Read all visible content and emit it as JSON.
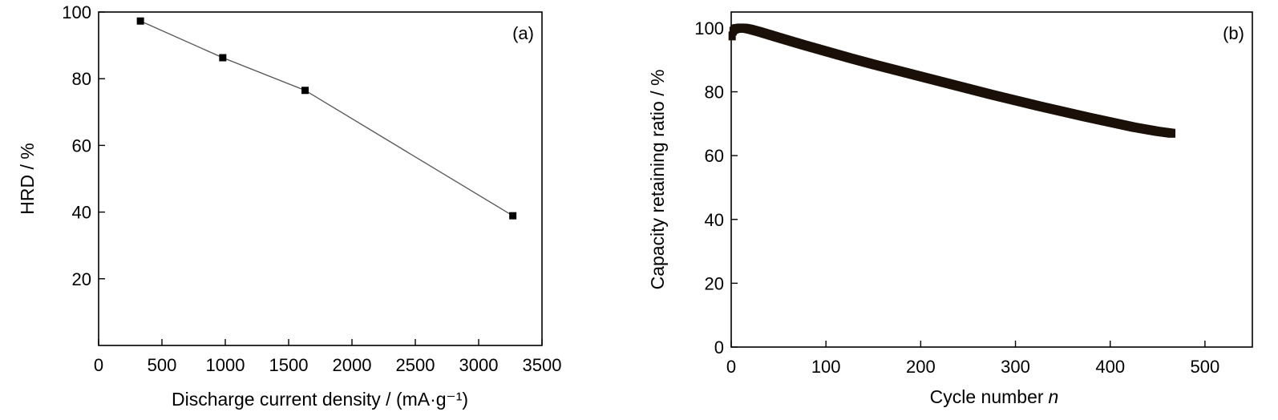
{
  "chart_data": [
    {
      "panel": "(a)",
      "type": "line",
      "xlabel": "Discharge current density / (mA·g⁻¹)",
      "ylabel": "HRD / %",
      "xlim": [
        0,
        3500
      ],
      "ylim": [
        0,
        100
      ],
      "xticks": [
        0,
        500,
        1000,
        1500,
        2000,
        2500,
        3000,
        3500
      ],
      "yticks": [
        20,
        40,
        60,
        80,
        100
      ],
      "series": [
        {
          "x": [
            330,
            980,
            1630,
            3270
          ],
          "y": [
            97.3,
            86.3,
            76.5,
            38.9
          ],
          "marker": "square",
          "color": "#000000",
          "line_color": "#555555"
        }
      ]
    },
    {
      "panel": "(b)",
      "type": "scatter",
      "xlabel": "Cycle number",
      "xlabel_italic": "n",
      "ylabel": "Capacity retaining ratio / %",
      "xlim": [
        0,
        550
      ],
      "ylim": [
        0,
        105
      ],
      "xticks": [
        0,
        100,
        200,
        300,
        400,
        500
      ],
      "yticks": [
        0,
        20,
        40,
        60,
        80,
        100
      ],
      "series": [
        {
          "x": [
            1,
            2,
            3,
            5,
            8,
            10,
            15,
            20,
            30,
            40,
            50,
            75,
            100,
            125,
            150,
            175,
            200,
            225,
            250,
            275,
            300,
            325,
            350,
            375,
            400,
            425,
            450,
            465
          ],
          "y": [
            97.5,
            99.0,
            99.5,
            99.8,
            99.9,
            100.0,
            99.9,
            99.6,
            98.8,
            97.9,
            97.0,
            94.8,
            92.7,
            90.6,
            88.6,
            86.7,
            84.8,
            82.9,
            81.0,
            79.1,
            77.3,
            75.5,
            73.8,
            72.1,
            70.5,
            68.9,
            67.6,
            67.0
          ],
          "marker": "square",
          "color": "#1a1009"
        }
      ]
    }
  ]
}
